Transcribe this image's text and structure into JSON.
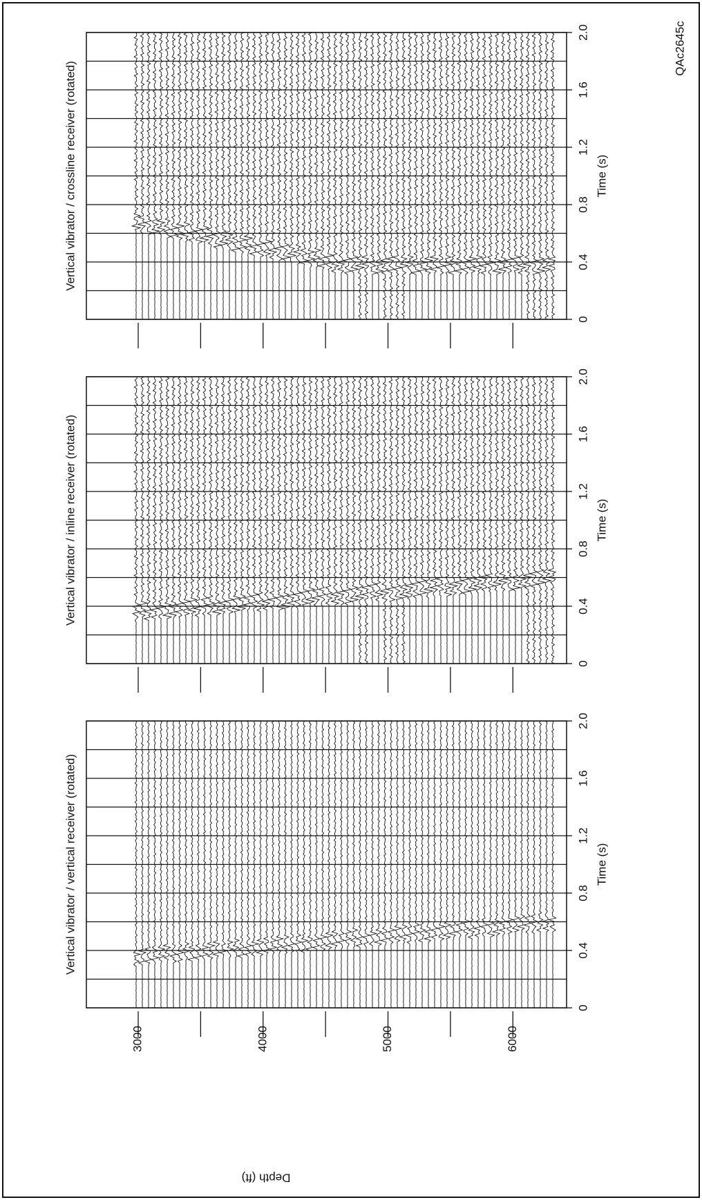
{
  "chart_data": [
    {
      "type": "seismic",
      "title": "Vertical vibrator / vertical receiver (rotated)",
      "xlabel": "Time (s)",
      "ylabel": "Depth (ft)",
      "xlim": [
        0,
        2
      ],
      "xticks": [
        0,
        0.4,
        0.8,
        1.2,
        1.6,
        {
          "value": 2,
          "label": "2.0"
        }
      ],
      "xminorticks": [
        0.2,
        0.6,
        1.0,
        1.4,
        1.8
      ],
      "ylim": [
        2585,
        6430
      ],
      "yticks": [
        3000,
        4000,
        5000,
        6000
      ],
      "depth_markers": [
        3000,
        3500,
        4000,
        4500,
        5000,
        5500,
        6000
      ]
    },
    {
      "type": "seismic",
      "title": "Vertical vibrator / inline receiver (rotated)",
      "xlabel": "Time (s)",
      "xlim": [
        0,
        2
      ],
      "xticks": [
        0,
        0.4,
        0.8,
        1.2,
        1.6,
        {
          "value": 2,
          "label": "2.0"
        }
      ],
      "xminorticks": [
        0.2,
        0.6,
        1.0,
        1.4,
        1.8
      ],
      "ylim": [
        2585,
        6430
      ],
      "depth_markers": [
        3000,
        3500,
        4000,
        4500,
        5000,
        5500,
        6000
      ]
    },
    {
      "type": "seismic",
      "title": "Vertical vibrator / crossline receiver (rotated)",
      "xlabel": "Time (s)",
      "xlim": [
        0,
        2
      ],
      "xticks": [
        0,
        0.4,
        0.8,
        1.2,
        1.6,
        {
          "value": 2,
          "label": "2.0"
        }
      ],
      "xminorticks": [
        0.2,
        0.6,
        1.0,
        1.4,
        1.8
      ],
      "ylim": [
        2585,
        6430
      ],
      "depth_markers": [
        3000,
        3500,
        4000,
        4500,
        5000,
        5500,
        6000
      ]
    }
  ],
  "figure_id": "QAc2645c"
}
